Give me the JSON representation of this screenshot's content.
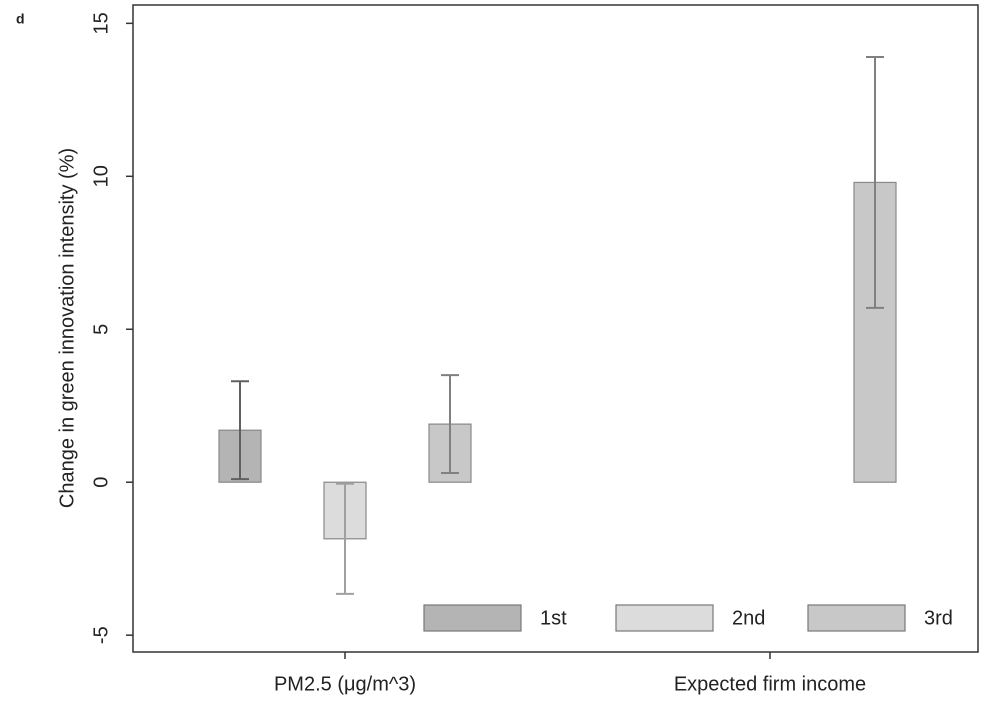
{
  "chart_data": {
    "type": "bar",
    "panel_label": "d",
    "ylabel": "Change in green innovation intensity (%)",
    "categories": [
      "PM2.5 (μg/m^3)",
      "Expected firm income"
    ],
    "series": [
      {
        "name": "1st",
        "color": "#b4b4b4",
        "error_color": "#606060",
        "values": [
          1.7,
          null
        ],
        "errors": [
          1.6,
          null
        ]
      },
      {
        "name": "2nd",
        "color": "#dcdcdc",
        "error_color": "#a0a0a0",
        "values": [
          -1.85,
          null
        ],
        "errors": [
          1.8,
          null
        ]
      },
      {
        "name": "3rd",
        "color": "#c8c8c8",
        "error_color": "#808080",
        "values": [
          1.9,
          9.8
        ],
        "errors": [
          1.6,
          4.1
        ]
      }
    ],
    "ylim": [
      -5.55,
      15.6
    ],
    "yticks": [
      -5,
      0,
      5,
      10,
      15
    ],
    "grid": false,
    "legend": "lower right"
  }
}
